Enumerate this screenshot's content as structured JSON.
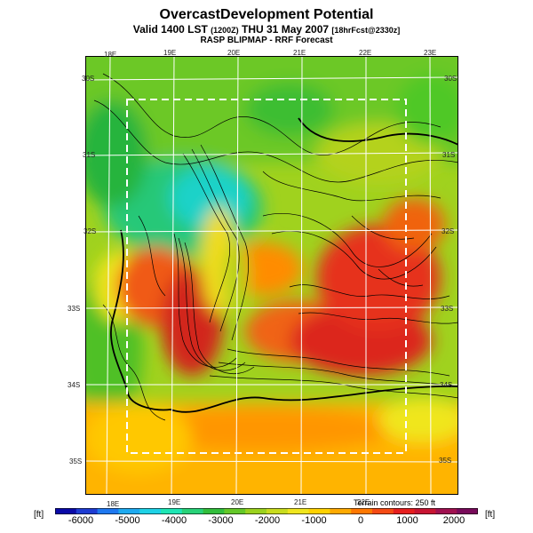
{
  "title": "OvercastDevelopment Potential",
  "subtitle_main": "Valid 1400 LST",
  "subtitle_utc": "(1200Z)",
  "subtitle_date": "THU 31 May 2007",
  "subtitle_init": "[18hrFcst@2330z]",
  "source": "RASP BLIPMAP - RRF Forecast",
  "terrain_note": "Terrain contours: 250 ft",
  "units": {
    "left": "[ft]",
    "right": "[ft]"
  },
  "lon_top": [
    "18E",
    "19E",
    "20E",
    "21E",
    "22E",
    "23E"
  ],
  "lon_bottom": [
    "18E",
    "19E",
    "20E",
    "21E",
    "22E"
  ],
  "lat_left": [
    "30S",
    "31S",
    "32S",
    "33S",
    "34S",
    "35S"
  ],
  "lat_right": [
    "30S",
    "31S",
    "32S",
    "33S",
    "34S",
    "35S"
  ],
  "colorbar": {
    "labels": [
      "-6000",
      "-5000",
      "-4000",
      "-3000",
      "-2000",
      "-1000",
      "0",
      "1000",
      "2000"
    ],
    "colors": [
      "#0a0aa8",
      "#1e3cd2",
      "#1e78f0",
      "#1eaaf0",
      "#1ed2e6",
      "#1ee6b4",
      "#28d278",
      "#32be3c",
      "#64c828",
      "#9bd21e",
      "#c8dc1e",
      "#f0e61e",
      "#ffd200",
      "#ffaa00",
      "#ff7800",
      "#f54a14",
      "#e61e1e",
      "#c81432",
      "#a01050",
      "#780a5a"
    ]
  }
}
